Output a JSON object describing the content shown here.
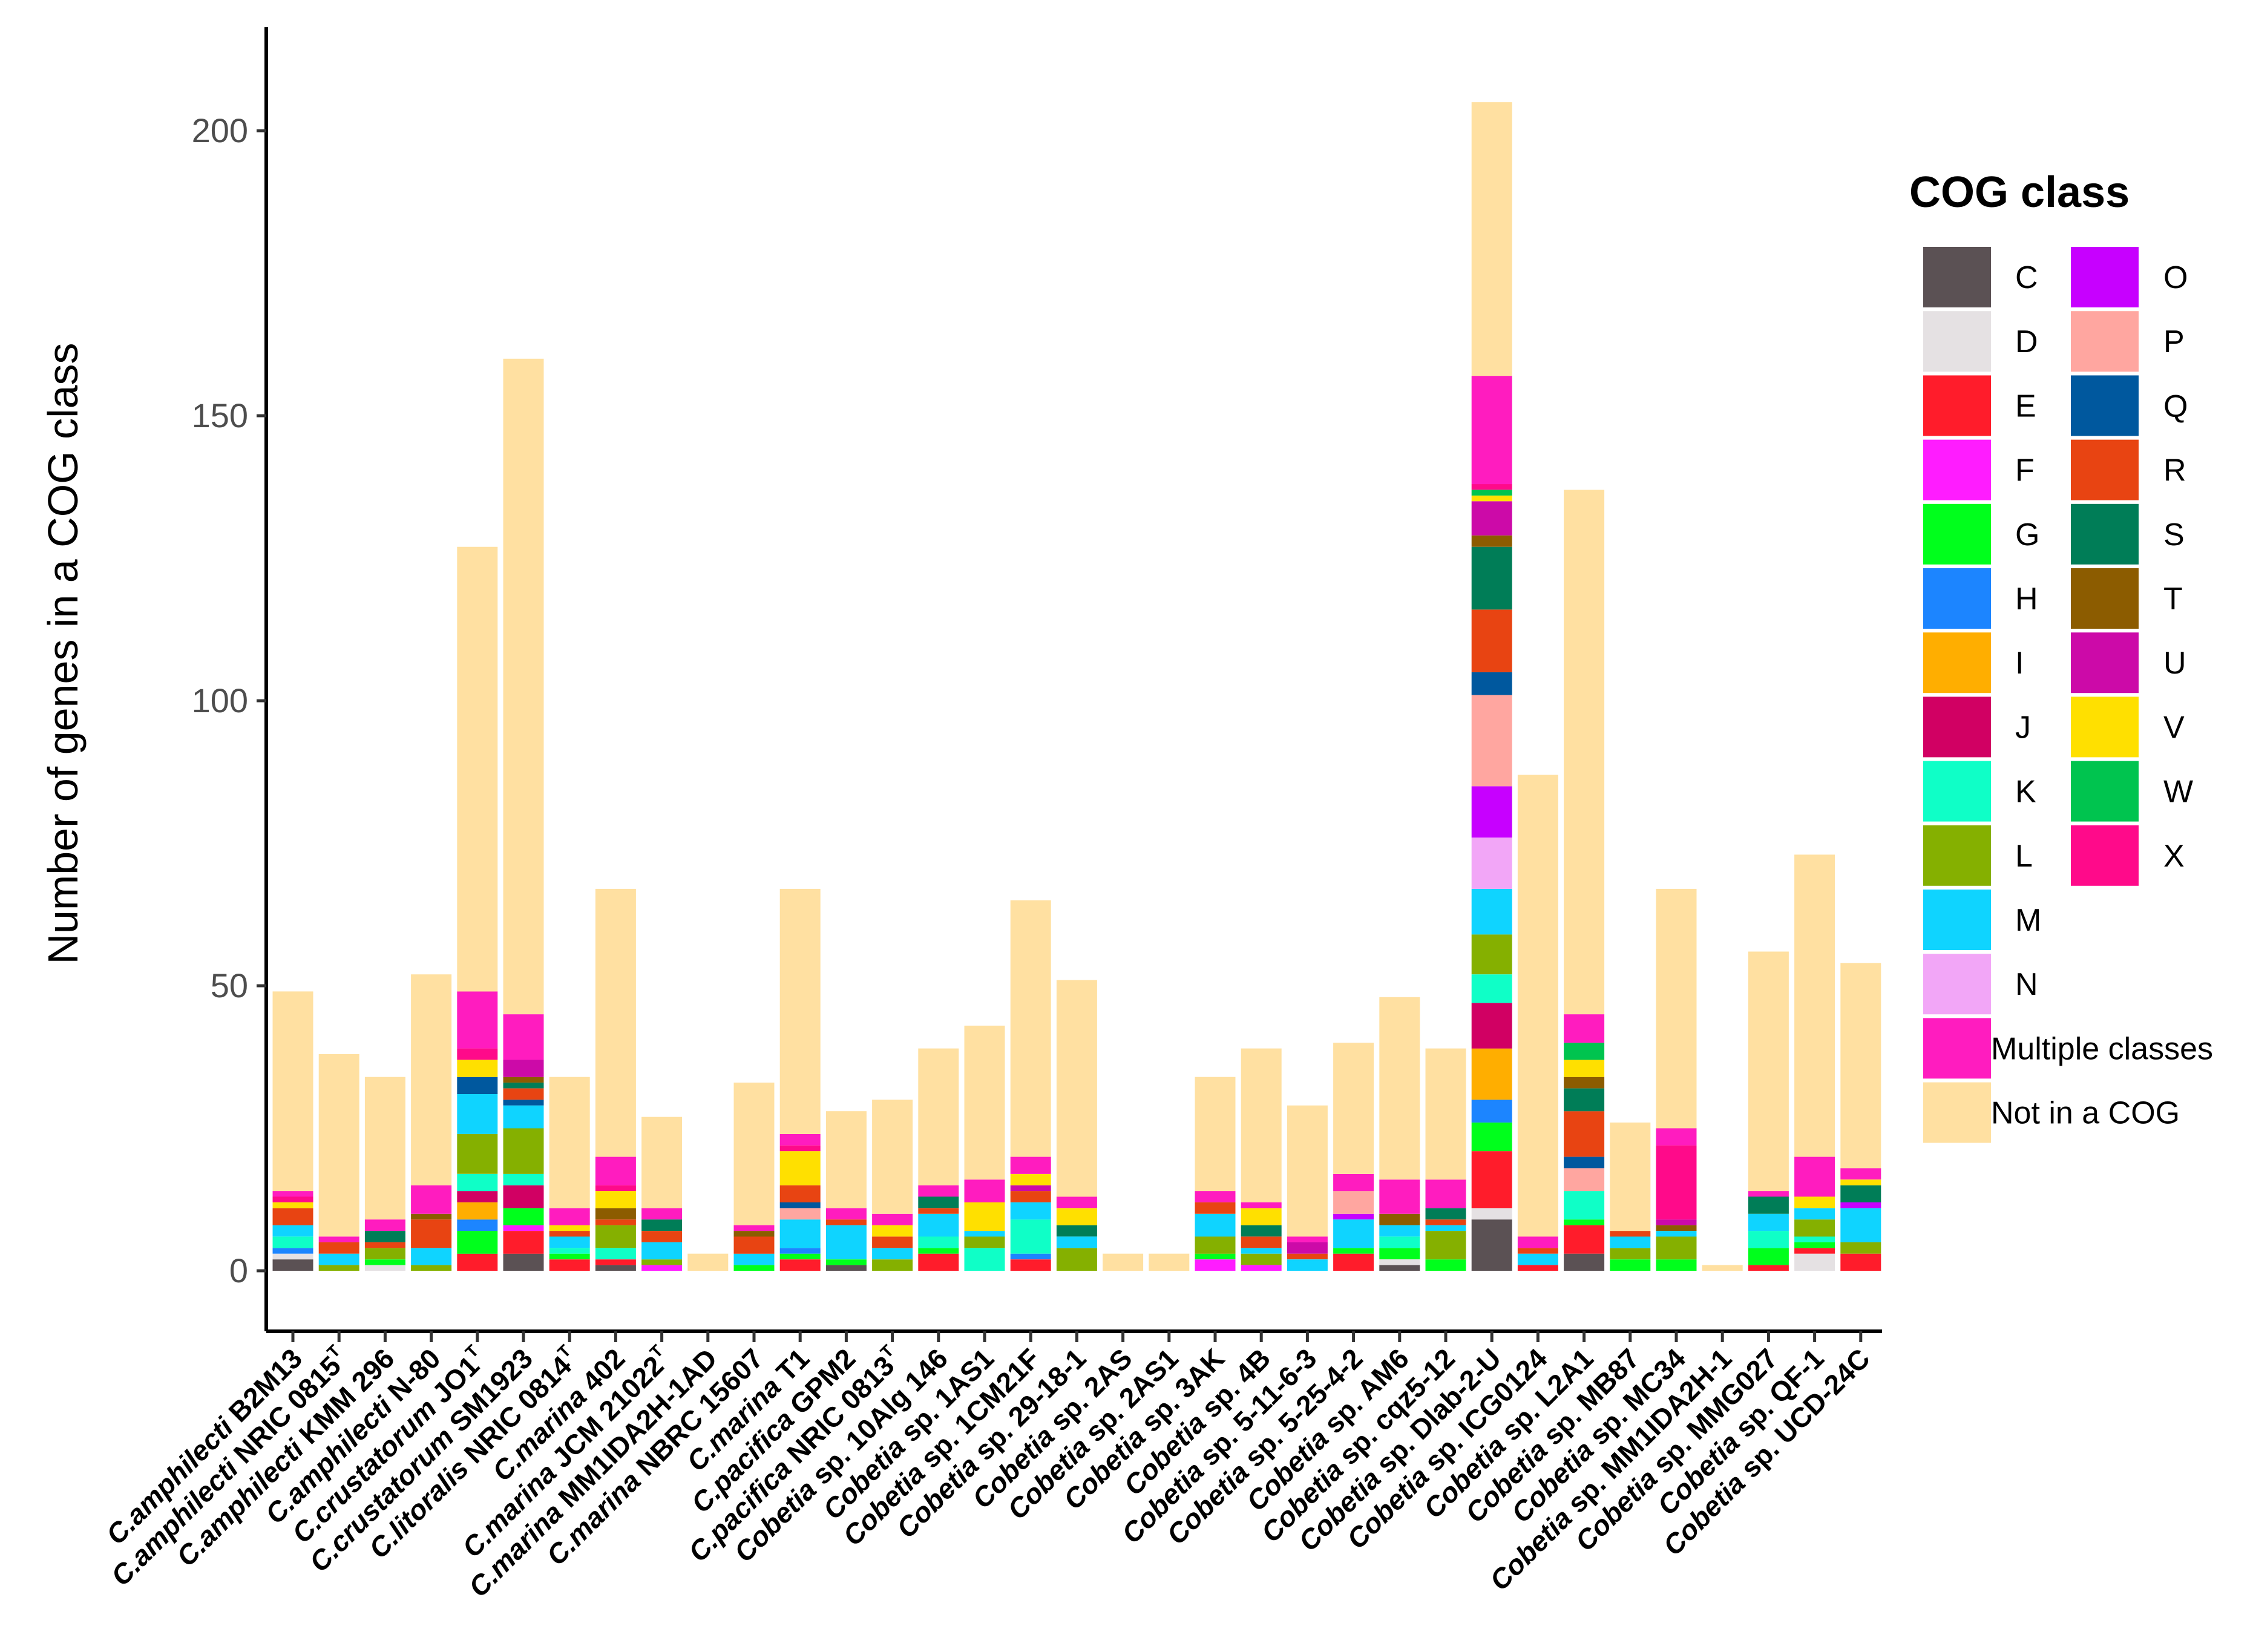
{
  "chart_data": {
    "type": "bar",
    "stacked": true,
    "title": "",
    "xlabel": "",
    "ylabel": "Number of genes in a COG class",
    "ylim": [
      -5,
      218
    ],
    "yticks": [
      0,
      50,
      100,
      150,
      200
    ],
    "legend": {
      "title": "COG class",
      "placement": "right",
      "col1": [
        {
          "key": "C",
          "label": "C",
          "color": "#5b5154"
        },
        {
          "key": "D",
          "label": "D",
          "color": "#e5e1e3"
        },
        {
          "key": "E",
          "label": "E",
          "color": "#ff1c2b"
        },
        {
          "key": "F",
          "label": "F",
          "color": "#ff1cff"
        },
        {
          "key": "G",
          "label": "G",
          "color": "#00ff1c"
        },
        {
          "key": "H",
          "label": "H",
          "color": "#1c85ff"
        },
        {
          "key": "I",
          "label": "I",
          "color": "#ffae00"
        },
        {
          "key": "J",
          "label": "J",
          "color": "#d10063"
        },
        {
          "key": "K",
          "label": "K",
          "color": "#0fffc7"
        },
        {
          "key": "L",
          "label": "L",
          "color": "#85b000"
        },
        {
          "key": "M",
          "label": "M",
          "color": "#0fd4ff"
        },
        {
          "key": "N",
          "label": "N",
          "color": "#f2a6f7"
        },
        {
          "key": "Multiple",
          "label": "Multiple classes",
          "color": "#ff1cbf"
        },
        {
          "key": "NotCOG",
          "label": "Not in a COG",
          "color": "#ffe0a1"
        }
      ],
      "col2": [
        {
          "key": "O",
          "label": "O",
          "color": "#c700ff"
        },
        {
          "key": "P",
          "label": "P",
          "color": "#ffa6a0"
        },
        {
          "key": "Q",
          "label": "Q",
          "color": "#00589e"
        },
        {
          "key": "R",
          "label": "R",
          "color": "#e84412"
        },
        {
          "key": "S",
          "label": "S",
          "color": "#007d57"
        },
        {
          "key": "T",
          "label": "T",
          "color": "#8c5c00"
        },
        {
          "key": "U",
          "label": "U",
          "color": "#cc0aa8"
        },
        {
          "key": "V",
          "label": "V",
          "color": "#ffe000"
        },
        {
          "key": "W",
          "label": "W",
          "color": "#00c44f"
        },
        {
          "key": "X",
          "label": "X",
          "color": "#ff0a8a"
        }
      ]
    },
    "categories": [
      {
        "species": "C.amphilecti",
        "strain": "B2M13",
        "sup": "",
        "highlight": false
      },
      {
        "species": "C.amphilecti",
        "strain": "NRIC 0815",
        "sup": "T",
        "highlight": false
      },
      {
        "species": "C.amphilecti",
        "strain": "KMM 296",
        "sup": "",
        "highlight": true
      },
      {
        "species": "C.amphilecti",
        "strain": "N-80",
        "sup": "",
        "highlight": false
      },
      {
        "species": "C.crustatorum",
        "strain": "JO1",
        "sup": "T",
        "highlight": false
      },
      {
        "species": "C.crustatorum",
        "strain": "SM1923",
        "sup": "",
        "highlight": false
      },
      {
        "species": "C.litoralis",
        "strain": "NRIC 0814",
        "sup": "T",
        "highlight": false
      },
      {
        "species": "C.marina",
        "strain": "402",
        "sup": "",
        "highlight": false
      },
      {
        "species": "C.marina",
        "strain": "JCM 21022",
        "sup": "T",
        "highlight": false
      },
      {
        "species": "C.marina",
        "strain": "MM1IDA2H-1AD",
        "sup": "",
        "highlight": false
      },
      {
        "species": "C.marina",
        "strain": "NBRC 15607",
        "sup": "",
        "highlight": false
      },
      {
        "species": "C.marina",
        "strain": "T1",
        "sup": "",
        "highlight": false
      },
      {
        "species": "C.pacifica",
        "strain": "GPM2",
        "sup": "",
        "highlight": false
      },
      {
        "species": "C.pacifica",
        "strain": "NRIC 0813",
        "sup": "T",
        "highlight": false
      },
      {
        "species": "Cobetia",
        "strain": "sp. 10Alg 146",
        "sup": "",
        "highlight": false
      },
      {
        "species": "Cobetia",
        "strain": "sp. 1AS1",
        "sup": "",
        "highlight": false
      },
      {
        "species": "Cobetia",
        "strain": "sp. 1CM21F",
        "sup": "",
        "highlight": false
      },
      {
        "species": "Cobetia",
        "strain": "sp. 29-18-1",
        "sup": "",
        "highlight": false
      },
      {
        "species": "Cobetia",
        "strain": "sp. 2AS",
        "sup": "",
        "highlight": false
      },
      {
        "species": "Cobetia",
        "strain": "sp. 2AS1",
        "sup": "",
        "highlight": false
      },
      {
        "species": "Cobetia",
        "strain": "sp. 3AK",
        "sup": "",
        "highlight": false
      },
      {
        "species": "Cobetia",
        "strain": "sp. 4B",
        "sup": "",
        "highlight": false
      },
      {
        "species": "Cobetia",
        "strain": "sp. 5-11-6-3",
        "sup": "",
        "highlight": false
      },
      {
        "species": "Cobetia",
        "strain": "sp. 5-25-4-2",
        "sup": "",
        "highlight": false
      },
      {
        "species": "Cobetia",
        "strain": "sp. AM6",
        "sup": "",
        "highlight": false
      },
      {
        "species": "Cobetia",
        "strain": "sp. cqz5-12",
        "sup": "",
        "highlight": false
      },
      {
        "species": "Cobetia",
        "strain": "sp. Dlab-2-U",
        "sup": "",
        "highlight": false
      },
      {
        "species": "Cobetia",
        "strain": "sp. ICG0124",
        "sup": "",
        "highlight": false
      },
      {
        "species": "Cobetia",
        "strain": "sp. L2A1",
        "sup": "",
        "highlight": false
      },
      {
        "species": "Cobetia",
        "strain": "sp. MB87",
        "sup": "",
        "highlight": false
      },
      {
        "species": "Cobetia",
        "strain": "sp. MC34",
        "sup": "",
        "highlight": false
      },
      {
        "species": "Cobetia",
        "strain": "sp. MM1IDA2H-1",
        "sup": "",
        "highlight": false
      },
      {
        "species": "Cobetia",
        "strain": "sp. MMG027",
        "sup": "",
        "highlight": false
      },
      {
        "species": "Cobetia",
        "strain": "sp. QF-1",
        "sup": "",
        "highlight": false
      },
      {
        "species": "Cobetia",
        "strain": "sp. UCD-24C",
        "sup": "",
        "highlight": false
      }
    ],
    "stack_order": [
      "C",
      "D",
      "E",
      "F",
      "G",
      "H",
      "I",
      "J",
      "K",
      "L",
      "M",
      "N",
      "O",
      "P",
      "Q",
      "R",
      "S",
      "T",
      "U",
      "V",
      "W",
      "X",
      "Multiple",
      "NotCOG"
    ],
    "stacks": [
      {
        "C": 2,
        "D": 1,
        "E": 0,
        "H": 1,
        "K": 2,
        "M": 2,
        "R": 3,
        "V": 1,
        "X": 1,
        "Multiple": 1,
        "NotCOG": 35
      },
      {
        "L": 1,
        "M": 2,
        "R": 2,
        "Multiple": 1,
        "NotCOG": 32
      },
      {
        "D": 1,
        "L": 2,
        "G": 1,
        "S": 2,
        "R": 1,
        "Multiple": 2,
        "NotCOG": 25
      },
      {
        "L": 1,
        "R": 5,
        "M": 3,
        "T": 1,
        "Multiple": 5,
        "NotCOG": 37
      },
      {
        "E": 3,
        "I": 3,
        "G": 4,
        "K": 3,
        "L": 7,
        "M": 7,
        "H": 2,
        "Q": 3,
        "J": 2,
        "V": 3,
        "X": 2,
        "Multiple": 10,
        "NotCOG": 78
      },
      {
        "C": 3,
        "G": 3,
        "E": 4,
        "K": 2,
        "J": 4,
        "L": 8,
        "M": 4,
        "F": 1,
        "R": 2,
        "S": 1,
        "Q": 1,
        "U": 3,
        "T": 1,
        "Multiple": 8,
        "NotCOG": 115
      },
      {
        "E": 2,
        "G": 1,
        "K": 1,
        "M": 2,
        "R": 1,
        "V": 1,
        "Multiple": 3,
        "NotCOG": 23
      },
      {
        "C": 1,
        "E": 1,
        "K": 2,
        "L": 4,
        "T": 2,
        "R": 1,
        "V": 3,
        "X": 1,
        "Multiple": 5,
        "NotCOG": 47
      },
      {
        "F": 1,
        "L": 1,
        "M": 3,
        "R": 2,
        "S": 2,
        "Multiple": 2,
        "NotCOG": 16
      },
      {
        "NotCOG": 3
      },
      {
        "G": 1,
        "M": 2,
        "R": 3,
        "T": 1,
        "Multiple": 1,
        "NotCOG": 25
      },
      {
        "E": 2,
        "H": 1,
        "M": 5,
        "G": 1,
        "P": 2,
        "Q": 1,
        "R": 3,
        "V": 6,
        "X": 1,
        "Multiple": 2,
        "NotCOG": 43
      },
      {
        "C": 1,
        "G": 1,
        "M": 6,
        "R": 1,
        "Multiple": 2,
        "NotCOG": 17
      },
      {
        "L": 2,
        "M": 2,
        "R": 2,
        "V": 2,
        "Multiple": 2,
        "NotCOG": 20
      },
      {
        "E": 3,
        "G": 1,
        "K": 2,
        "M": 4,
        "S": 2,
        "R": 1,
        "Multiple": 2,
        "NotCOG": 24
      },
      {
        "L": 2,
        "K": 4,
        "M": 1,
        "V": 5,
        "Multiple": 4,
        "NotCOG": 27
      },
      {
        "E": 2,
        "K": 6,
        "M": 3,
        "H": 1,
        "U": 1,
        "R": 2,
        "V": 2,
        "Multiple": 3,
        "NotCOG": 45
      },
      {
        "L": 4,
        "M": 2,
        "S": 2,
        "V": 3,
        "Multiple": 2,
        "NotCOG": 38
      },
      {
        "NotCOG": 3
      },
      {
        "NotCOG": 3
      },
      {
        "F": 2,
        "L": 3,
        "M": 4,
        "R": 2,
        "G": 1,
        "Multiple": 2,
        "NotCOG": 20
      },
      {
        "F": 1,
        "L": 2,
        "S": 2,
        "M": 1,
        "V": 3,
        "R": 2,
        "Multiple": 1,
        "NotCOG": 27
      },
      {
        "M": 2,
        "U": 2,
        "R": 1,
        "Multiple": 1,
        "NotCOG": 23
      },
      {
        "E": 3,
        "G": 1,
        "M": 5,
        "O": 1,
        "P": 4,
        "Multiple": 3,
        "NotCOG": 23
      },
      {
        "C": 1,
        "D": 1,
        "G": 2,
        "K": 2,
        "M": 2,
        "T": 2,
        "Multiple": 6,
        "NotCOG": 32
      },
      {
        "G": 2,
        "L": 5,
        "M": 1,
        "S": 2,
        "R": 1,
        "Multiple": 5,
        "NotCOG": 23
      },
      {
        "C": 9,
        "D": 2,
        "E": 10,
        "G": 5,
        "H": 4,
        "I": 9,
        "J": 8,
        "K": 5,
        "L": 7,
        "M": 8,
        "N": 9,
        "O": 9,
        "P": 16,
        "Q": 4,
        "R": 11,
        "S": 11,
        "T": 2,
        "U": 6,
        "V": 1,
        "W": 1,
        "X": 1,
        "Multiple": 19,
        "NotCOG": 48
      },
      {
        "E": 1,
        "M": 2,
        "R": 1,
        "Multiple": 2,
        "NotCOG": 81
      },
      {
        "C": 3,
        "E": 5,
        "G": 1,
        "K": 5,
        "P": 4,
        "Q": 2,
        "R": 8,
        "S": 4,
        "W": 3,
        "V": 3,
        "T": 2,
        "Multiple": 5,
        "NotCOG": 92
      },
      {
        "G": 2,
        "M": 2,
        "L": 2,
        "R": 1,
        "NotCOG": 19
      },
      {
        "G": 2,
        "M": 1,
        "L": 4,
        "U": 1,
        "T": 1,
        "X": 13,
        "Multiple": 3,
        "NotCOG": 42
      },
      {
        "NotCOG": 1
      },
      {
        "E": 1,
        "G": 3,
        "K": 3,
        "M": 3,
        "S": 3,
        "Multiple": 1,
        "NotCOG": 42
      },
      {
        "D": 3,
        "E": 1,
        "G": 1,
        "K": 1,
        "L": 3,
        "M": 2,
        "V": 2,
        "Multiple": 7,
        "NotCOG": 53
      },
      {
        "E": 3,
        "L": 2,
        "M": 6,
        "O": 1,
        "S": 3,
        "V": 1,
        "Multiple": 2,
        "NotCOG": 36
      }
    ]
  }
}
